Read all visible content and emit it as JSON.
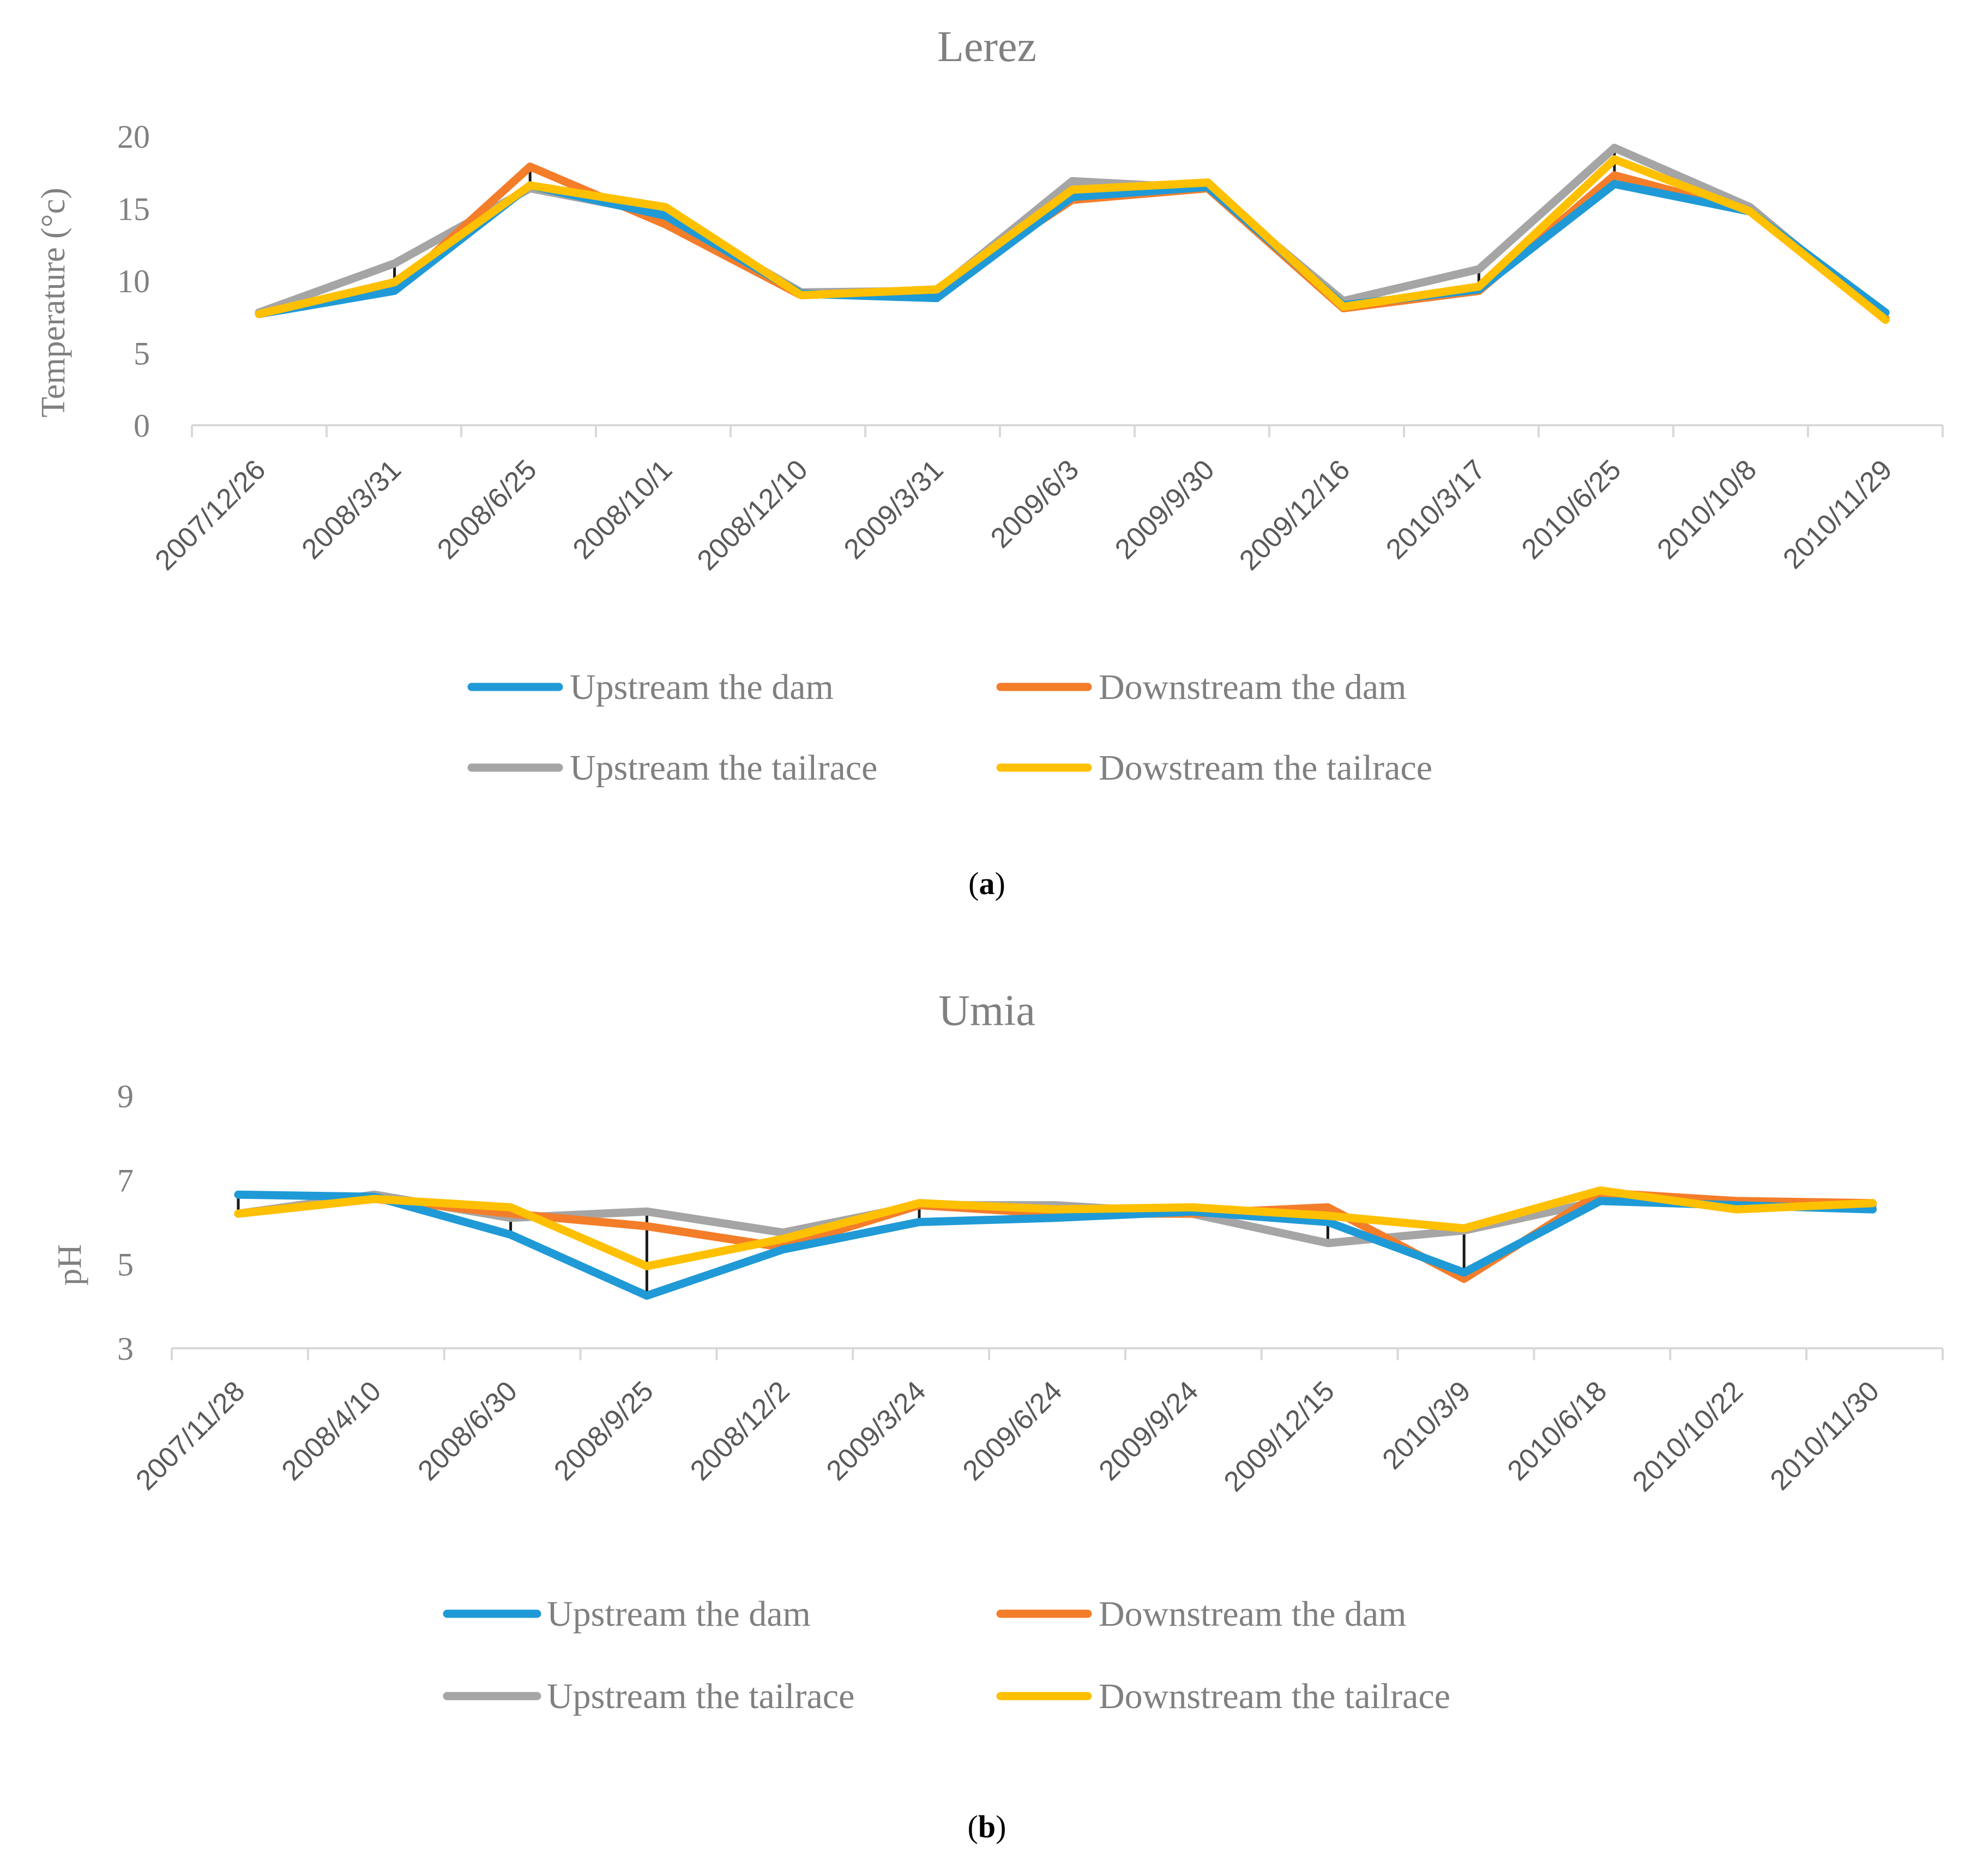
{
  "chart_data": [
    {
      "type": "line",
      "title": "Lerez",
      "panel_label": "a",
      "xlabel": "",
      "ylabel": "Temperature (°c)",
      "ylim": [
        0,
        20
      ],
      "yticks": [
        0,
        5,
        10,
        15,
        20
      ],
      "grid": false,
      "legend_position": "bottom",
      "categories": [
        "2007/12/26",
        "2008/3/31",
        "2008/6/25",
        "2008/10/1",
        "2008/12/10",
        "2009/3/31",
        "2009/6/3",
        "2009/9/30",
        "2009/12/16",
        "2010/3/17",
        "2010/6/25",
        "2010/10/8",
        "2010/11/29"
      ],
      "series": [
        {
          "name": "Upstream the dam",
          "color": "#1F9AD6",
          "values": [
            7.7,
            9.3,
            16.6,
            14.5,
            9.1,
            8.8,
            15.8,
            16.5,
            8.3,
            9.4,
            16.7,
            14.8,
            7.8
          ]
        },
        {
          "name": "Downstream the dam",
          "color": "#F47D2A",
          "values": [
            7.7,
            9.4,
            17.9,
            13.9,
            9.0,
            9.4,
            15.6,
            16.4,
            8.1,
            9.3,
            17.3,
            14.8,
            7.4
          ]
        },
        {
          "name": "Upstream the tailrace",
          "color": "#A5A5A5",
          "values": [
            7.8,
            11.2,
            16.4,
            14.6,
            9.2,
            9.3,
            16.9,
            16.4,
            8.6,
            10.8,
            19.2,
            15.1,
            7.3
          ]
        },
        {
          "name": "Dowstream the tailrace",
          "color": "#FFC000",
          "values": [
            7.7,
            9.9,
            16.6,
            15.1,
            9.0,
            9.4,
            16.3,
            16.8,
            8.2,
            9.6,
            18.4,
            14.8,
            7.3
          ]
        }
      ]
    },
    {
      "type": "line",
      "title": "Umia",
      "panel_label": "b",
      "xlabel": "",
      "ylabel": "pH",
      "ylim": [
        3,
        9
      ],
      "yticks": [
        3,
        5,
        7,
        9
      ],
      "grid": false,
      "legend_position": "bottom",
      "categories": [
        "2007/11/28",
        "2008/4/10",
        "2008/6/30",
        "2008/9/25",
        "2008/12/2",
        "2009/3/24",
        "2009/6/24",
        "2009/9/24",
        "2009/12/15",
        "2010/3/9",
        "2010/6/18",
        "2010/10/22",
        "2010/11/30"
      ],
      "series": [
        {
          "name": "Upstream the dam",
          "color": "#1F9AD6",
          "values": [
            6.65,
            6.6,
            5.7,
            4.25,
            5.35,
            6.0,
            6.1,
            6.25,
            6.0,
            4.8,
            6.5,
            6.4,
            6.3
          ]
        },
        {
          "name": "Downstream the dam",
          "color": "#F47D2A",
          "values": [
            6.2,
            6.55,
            6.2,
            5.9,
            5.4,
            6.4,
            6.2,
            6.2,
            6.35,
            4.65,
            6.7,
            6.5,
            6.45
          ]
        },
        {
          "name": "Upstream the tailrace",
          "color": "#A5A5A5",
          "values": [
            6.2,
            6.65,
            6.1,
            6.25,
            5.75,
            6.4,
            6.4,
            6.2,
            5.5,
            5.8,
            6.5,
            6.4,
            6.4
          ]
        },
        {
          "name": "Downstream the tailrace",
          "color": "#FFC000",
          "values": [
            6.2,
            6.55,
            6.35,
            4.95,
            5.6,
            6.45,
            6.3,
            6.35,
            6.15,
            5.85,
            6.75,
            6.3,
            6.45
          ]
        }
      ]
    }
  ]
}
